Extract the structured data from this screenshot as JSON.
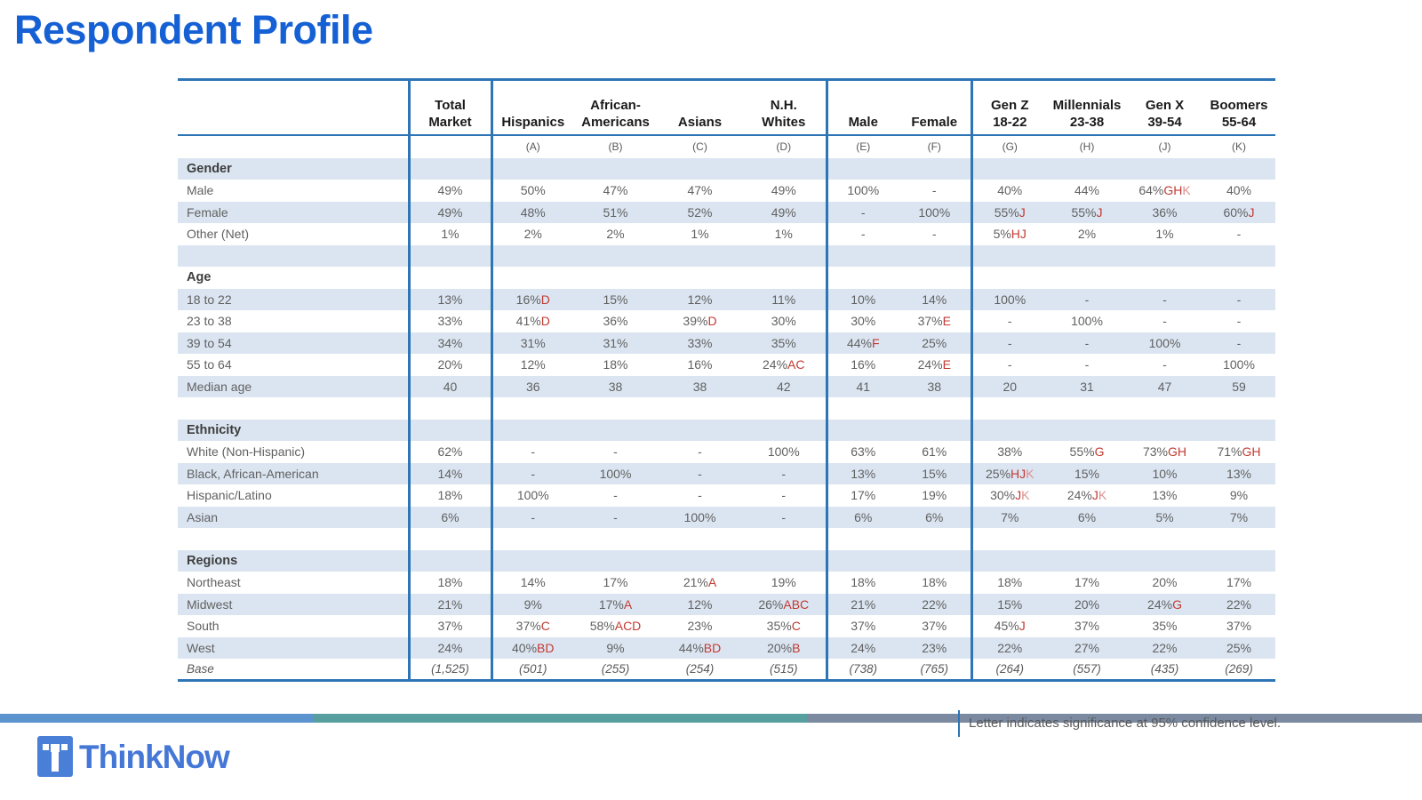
{
  "title": "Respondent Profile",
  "footer": {
    "brand": "ThinkNow",
    "note": "Letter indicates significance at 95% confidence level."
  },
  "colors": {
    "accent_blue": "#2e75b6",
    "stripe_blue": "#dbe5f1",
    "title_blue": "#1460d4",
    "sig_red": "#c23a32",
    "sig_light_red": "#dd8f8f",
    "bar_blue": "#5b94cf",
    "bar_teal": "#58a0a0",
    "bar_slate": "#7b8aa0",
    "logo_blue": "#4a7fd8"
  },
  "table": {
    "columns": [
      {
        "key": "label",
        "header": "",
        "letter": "",
        "divider": false
      },
      {
        "key": "total_market",
        "header": "Total\nMarket",
        "letter": "",
        "divider": true
      },
      {
        "key": "hispanics",
        "header": "Hispanics",
        "letter": "(A)",
        "divider": true
      },
      {
        "key": "african_americans",
        "header": "African-\nAmericans",
        "letter": "(B)",
        "divider": false
      },
      {
        "key": "asians",
        "header": "Asians",
        "letter": "(C)",
        "divider": false
      },
      {
        "key": "nh_whites",
        "header": "N.H.\nWhites",
        "letter": "(D)",
        "divider": false
      },
      {
        "key": "male",
        "header": "Male",
        "letter": "(E)",
        "divider": true
      },
      {
        "key": "female",
        "header": "Female",
        "letter": "(F)",
        "divider": false
      },
      {
        "key": "gen_z",
        "header": "Gen Z\n18-22",
        "letter": "(G)",
        "divider": true
      },
      {
        "key": "millennials",
        "header": "Millennials\n23-38",
        "letter": "(H)",
        "divider": false
      },
      {
        "key": "gen_x",
        "header": "Gen X\n39-54",
        "letter": "(J)",
        "divider": false
      },
      {
        "key": "boomers",
        "header": "Boomers\n55-64",
        "letter": "(K)",
        "divider": false
      }
    ],
    "rows": [
      {
        "type": "section",
        "label": "Gender"
      },
      {
        "type": "data",
        "label": "Male",
        "values": [
          {
            "v": "49%"
          },
          {
            "v": "50%"
          },
          {
            "v": "47%"
          },
          {
            "v": "47%"
          },
          {
            "v": "49%"
          },
          {
            "v": "100%"
          },
          {
            "v": "-"
          },
          {
            "v": "40%"
          },
          {
            "v": "44%"
          },
          {
            "v": "64%",
            "s": "GH",
            "s2": "K"
          },
          {
            "v": "40%"
          }
        ]
      },
      {
        "type": "data",
        "label": "Female",
        "values": [
          {
            "v": "49%"
          },
          {
            "v": "48%"
          },
          {
            "v": "51%"
          },
          {
            "v": "52%"
          },
          {
            "v": "49%"
          },
          {
            "v": "-"
          },
          {
            "v": "100%"
          },
          {
            "v": "55%",
            "s": "J"
          },
          {
            "v": "55%",
            "s": "J"
          },
          {
            "v": "36%"
          },
          {
            "v": "60%",
            "s": "J"
          }
        ]
      },
      {
        "type": "data",
        "label": "Other (Net)",
        "values": [
          {
            "v": "1%"
          },
          {
            "v": "2%"
          },
          {
            "v": "2%"
          },
          {
            "v": "1%"
          },
          {
            "v": "1%"
          },
          {
            "v": "-"
          },
          {
            "v": "-"
          },
          {
            "v": "5%",
            "s": "HJ"
          },
          {
            "v": "2%"
          },
          {
            "v": "1%"
          },
          {
            "v": "-"
          }
        ]
      },
      {
        "type": "blank"
      },
      {
        "type": "section",
        "label": "Age"
      },
      {
        "type": "data",
        "label": "18 to 22",
        "values": [
          {
            "v": "13%"
          },
          {
            "v": "16%",
            "s": "D"
          },
          {
            "v": "15%"
          },
          {
            "v": "12%"
          },
          {
            "v": "11%"
          },
          {
            "v": "10%"
          },
          {
            "v": "14%"
          },
          {
            "v": "100%"
          },
          {
            "v": "-"
          },
          {
            "v": "-"
          },
          {
            "v": "-"
          }
        ]
      },
      {
        "type": "data",
        "label": "23 to 38",
        "values": [
          {
            "v": "33%"
          },
          {
            "v": "41%",
            "s": "D"
          },
          {
            "v": "36%"
          },
          {
            "v": "39%",
            "s": "D"
          },
          {
            "v": "30%"
          },
          {
            "v": "30%"
          },
          {
            "v": "37%",
            "s": "E"
          },
          {
            "v": "-"
          },
          {
            "v": "100%"
          },
          {
            "v": "-"
          },
          {
            "v": "-"
          }
        ]
      },
      {
        "type": "data",
        "label": "39 to 54",
        "values": [
          {
            "v": "34%"
          },
          {
            "v": "31%"
          },
          {
            "v": "31%"
          },
          {
            "v": "33%"
          },
          {
            "v": "35%"
          },
          {
            "v": "44%",
            "s": "F"
          },
          {
            "v": "25%"
          },
          {
            "v": "-"
          },
          {
            "v": "-"
          },
          {
            "v": "100%"
          },
          {
            "v": "-"
          }
        ]
      },
      {
        "type": "data",
        "label": "55 to 64",
        "values": [
          {
            "v": "20%"
          },
          {
            "v": "12%"
          },
          {
            "v": "18%"
          },
          {
            "v": "16%"
          },
          {
            "v": "24%",
            "s": "AC"
          },
          {
            "v": "16%"
          },
          {
            "v": "24%",
            "s": "E"
          },
          {
            "v": "-"
          },
          {
            "v": "-"
          },
          {
            "v": "-"
          },
          {
            "v": "100%"
          }
        ]
      },
      {
        "type": "data",
        "label": "Median age",
        "values": [
          {
            "v": "40"
          },
          {
            "v": "36"
          },
          {
            "v": "38"
          },
          {
            "v": "38"
          },
          {
            "v": "42"
          },
          {
            "v": "41"
          },
          {
            "v": "38"
          },
          {
            "v": "20"
          },
          {
            "v": "31"
          },
          {
            "v": "47"
          },
          {
            "v": "59"
          }
        ]
      },
      {
        "type": "blank"
      },
      {
        "type": "section",
        "label": "Ethnicity"
      },
      {
        "type": "data",
        "label": "White (Non-Hispanic)",
        "values": [
          {
            "v": "62%"
          },
          {
            "v": "-"
          },
          {
            "v": "-"
          },
          {
            "v": "-"
          },
          {
            "v": "100%"
          },
          {
            "v": "63%"
          },
          {
            "v": "61%"
          },
          {
            "v": "38%"
          },
          {
            "v": "55%",
            "s": "G"
          },
          {
            "v": "73%",
            "s": "GH"
          },
          {
            "v": "71%",
            "s": "GH"
          }
        ]
      },
      {
        "type": "data",
        "label": "Black, African-American",
        "values": [
          {
            "v": "14%"
          },
          {
            "v": "-"
          },
          {
            "v": "100%"
          },
          {
            "v": "-"
          },
          {
            "v": "-"
          },
          {
            "v": "13%"
          },
          {
            "v": "15%"
          },
          {
            "v": "25%",
            "s": "HJ",
            "s2": "K"
          },
          {
            "v": "15%"
          },
          {
            "v": "10%"
          },
          {
            "v": "13%"
          }
        ]
      },
      {
        "type": "data",
        "label": "Hispanic/Latino",
        "values": [
          {
            "v": "18%"
          },
          {
            "v": "100%"
          },
          {
            "v": "-"
          },
          {
            "v": "-"
          },
          {
            "v": "-"
          },
          {
            "v": "17%"
          },
          {
            "v": "19%"
          },
          {
            "v": "30%",
            "s": "J",
            "s2": "K"
          },
          {
            "v": "24%",
            "s": "J",
            "s2": "K"
          },
          {
            "v": "13%"
          },
          {
            "v": "9%"
          }
        ]
      },
      {
        "type": "data",
        "label": "Asian",
        "values": [
          {
            "v": "6%"
          },
          {
            "v": "-"
          },
          {
            "v": "-"
          },
          {
            "v": "100%"
          },
          {
            "v": "-"
          },
          {
            "v": "6%"
          },
          {
            "v": "6%"
          },
          {
            "v": "7%"
          },
          {
            "v": "6%"
          },
          {
            "v": "5%"
          },
          {
            "v": "7%"
          }
        ]
      },
      {
        "type": "blank"
      },
      {
        "type": "section",
        "label": "Regions"
      },
      {
        "type": "data",
        "label": "Northeast",
        "values": [
          {
            "v": "18%"
          },
          {
            "v": "14%"
          },
          {
            "v": "17%"
          },
          {
            "v": "21%",
            "s": "A"
          },
          {
            "v": "19%"
          },
          {
            "v": "18%"
          },
          {
            "v": "18%"
          },
          {
            "v": "18%"
          },
          {
            "v": "17%"
          },
          {
            "v": "20%"
          },
          {
            "v": "17%"
          }
        ]
      },
      {
        "type": "data",
        "label": "Midwest",
        "values": [
          {
            "v": "21%"
          },
          {
            "v": "9%"
          },
          {
            "v": "17%",
            "s": "A"
          },
          {
            "v": "12%"
          },
          {
            "v": "26%",
            "s": "ABC"
          },
          {
            "v": "21%"
          },
          {
            "v": "22%"
          },
          {
            "v": "15%"
          },
          {
            "v": "20%"
          },
          {
            "v": "24%",
            "s": "G"
          },
          {
            "v": "22%"
          }
        ]
      },
      {
        "type": "data",
        "label": "South",
        "values": [
          {
            "v": "37%"
          },
          {
            "v": "37%",
            "s": "C"
          },
          {
            "v": "58%",
            "s": "ACD"
          },
          {
            "v": "23%"
          },
          {
            "v": "35%",
            "s": "C"
          },
          {
            "v": "37%"
          },
          {
            "v": "37%"
          },
          {
            "v": "45%",
            "s": "J"
          },
          {
            "v": "37%"
          },
          {
            "v": "35%"
          },
          {
            "v": "37%"
          }
        ]
      },
      {
        "type": "data",
        "label": "West",
        "values": [
          {
            "v": "24%"
          },
          {
            "v": "40%",
            "s": "BD"
          },
          {
            "v": "9%"
          },
          {
            "v": "44%",
            "s": "BD"
          },
          {
            "v": "20%",
            "s": "B"
          },
          {
            "v": "24%"
          },
          {
            "v": "23%"
          },
          {
            "v": "22%"
          },
          {
            "v": "27%"
          },
          {
            "v": "22%"
          },
          {
            "v": "25%"
          }
        ]
      },
      {
        "type": "base",
        "label": "Base",
        "values": [
          {
            "v": "(1,525)"
          },
          {
            "v": "(501)"
          },
          {
            "v": "(255)"
          },
          {
            "v": "(254)"
          },
          {
            "v": "(515)"
          },
          {
            "v": "(738)"
          },
          {
            "v": "(765)"
          },
          {
            "v": "(264)"
          },
          {
            "v": "(557)"
          },
          {
            "v": "(435)"
          },
          {
            "v": "(269)"
          }
        ]
      }
    ]
  }
}
